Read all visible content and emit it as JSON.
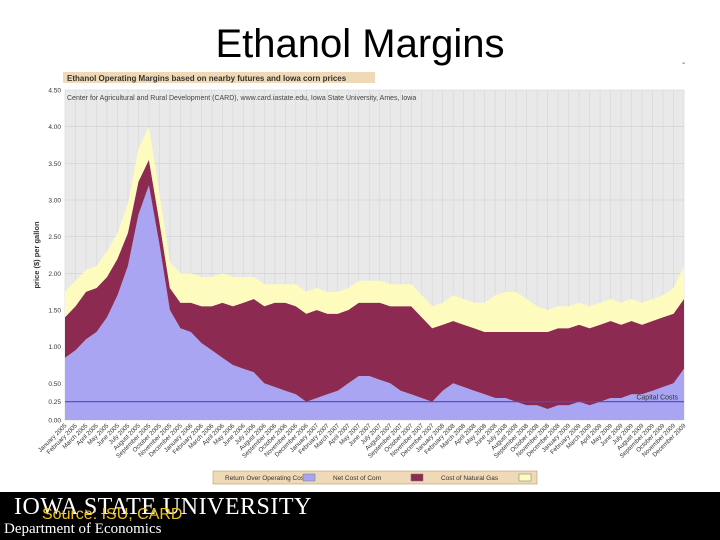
{
  "slide": {
    "title": "Ethanol Margins",
    "corner_mark": "-",
    "university": "IOWA STATE UNIVERSITY",
    "department": "Department of Economics",
    "source": "Source: ISU, CARD"
  },
  "chart_data": {
    "type": "area",
    "title": "Ethanol Operating Margins based on nearby futures and Iowa corn prices",
    "subtitle": "Center for Agricultural and Rural Development (CARD), www.card.iastate.edu, Iowa State University, Ames, Iowa",
    "ylabel": "price ($) per gallon",
    "xlabel": "",
    "ylim": [
      0,
      4.5
    ],
    "yticks": [
      "0.00",
      "0.25",
      "0.50",
      "1.00",
      "1.50",
      "2.00",
      "2.50",
      "3.00",
      "3.50",
      "4.00",
      "4.50"
    ],
    "ytick_values": [
      0,
      0.25,
      0.5,
      1,
      1.5,
      2,
      2.5,
      3,
      3.5,
      4,
      4.5
    ],
    "categories": [
      "January 2005",
      "February 2005",
      "March 2005",
      "April 2005",
      "May 2005",
      "June 2005",
      "July 2005",
      "August 2005",
      "September 2005",
      "October 2005",
      "November 2005",
      "December 2005",
      "January 2006",
      "February 2006",
      "March 2006",
      "April 2006",
      "May 2006",
      "June 2006",
      "July 2006",
      "August 2006",
      "September 2006",
      "October 2006",
      "November 2006",
      "December 2006",
      "January 2007",
      "February 2007",
      "March 2007",
      "April 2007",
      "May 2007",
      "June 2007",
      "July 2007",
      "August 2007",
      "September 2007",
      "October 2007",
      "November 2007",
      "December 2007",
      "January 2008",
      "February 2008",
      "March 2008",
      "April 2008",
      "May 2008",
      "June 2008",
      "July 2008",
      "August 2008",
      "September 2008",
      "October 2008",
      "November 2008",
      "December 2008",
      "January 2009",
      "February 2009",
      "March 2009",
      "April 2009",
      "May 2009",
      "June 2009",
      "July 2009",
      "August 2009",
      "September 2009",
      "October 2009",
      "November 2009",
      "December 2009"
    ],
    "series": [
      {
        "name": "Return Over Operating Costs",
        "color": "#a9a5f2",
        "values": [
          0.85,
          0.95,
          1.1,
          1.2,
          1.4,
          1.7,
          2.1,
          2.8,
          3.2,
          2.4,
          1.5,
          1.25,
          1.2,
          1.05,
          0.95,
          0.85,
          0.75,
          0.7,
          0.65,
          0.5,
          0.45,
          0.4,
          0.35,
          0.25,
          0.3,
          0.35,
          0.4,
          0.5,
          0.6,
          0.6,
          0.55,
          0.5,
          0.4,
          0.35,
          0.3,
          0.25,
          0.4,
          0.5,
          0.45,
          0.4,
          0.35,
          0.3,
          0.3,
          0.25,
          0.2,
          0.2,
          0.15,
          0.2,
          0.2,
          0.25,
          0.2,
          0.25,
          0.3,
          0.3,
          0.35,
          0.35,
          0.4,
          0.45,
          0.5,
          0.7
        ]
      },
      {
        "name": "Net Cost of Corn",
        "color": "#8c2a52",
        "values": [
          0.55,
          0.6,
          0.65,
          0.6,
          0.55,
          0.5,
          0.45,
          0.45,
          0.35,
          0.3,
          0.3,
          0.35,
          0.4,
          0.5,
          0.6,
          0.75,
          0.8,
          0.9,
          1.0,
          1.05,
          1.15,
          1.2,
          1.2,
          1.2,
          1.2,
          1.1,
          1.05,
          1.0,
          1.0,
          1.0,
          1.05,
          1.05,
          1.15,
          1.2,
          1.1,
          1.0,
          0.9,
          0.85,
          0.85,
          0.85,
          0.85,
          0.9,
          0.9,
          0.95,
          1.0,
          1.0,
          1.05,
          1.05,
          1.05,
          1.05,
          1.05,
          1.05,
          1.05,
          1.0,
          1.0,
          0.95,
          0.95,
          0.95,
          0.95,
          0.95
        ]
      },
      {
        "name": "Cost of Natural Gas",
        "color": "#fdfbbe",
        "values": [
          0.35,
          0.35,
          0.3,
          0.3,
          0.35,
          0.35,
          0.4,
          0.45,
          0.45,
          0.4,
          0.35,
          0.4,
          0.4,
          0.4,
          0.4,
          0.4,
          0.4,
          0.35,
          0.3,
          0.3,
          0.25,
          0.25,
          0.3,
          0.3,
          0.3,
          0.3,
          0.3,
          0.3,
          0.3,
          0.3,
          0.3,
          0.3,
          0.3,
          0.3,
          0.3,
          0.3,
          0.3,
          0.35,
          0.35,
          0.35,
          0.4,
          0.5,
          0.55,
          0.55,
          0.45,
          0.35,
          0.3,
          0.3,
          0.3,
          0.3,
          0.3,
          0.3,
          0.3,
          0.3,
          0.3,
          0.3,
          0.3,
          0.3,
          0.35,
          0.45
        ]
      }
    ],
    "reference_line": {
      "value": 0.25,
      "label": "Capital Costs",
      "color": "#4a4ad6"
    },
    "legend_position": "bottom",
    "grid": true,
    "colors": {
      "plot_bg": "#e9e9ea",
      "title_bar": "#efd9b7",
      "legend_bar": "#efd9b7"
    }
  }
}
